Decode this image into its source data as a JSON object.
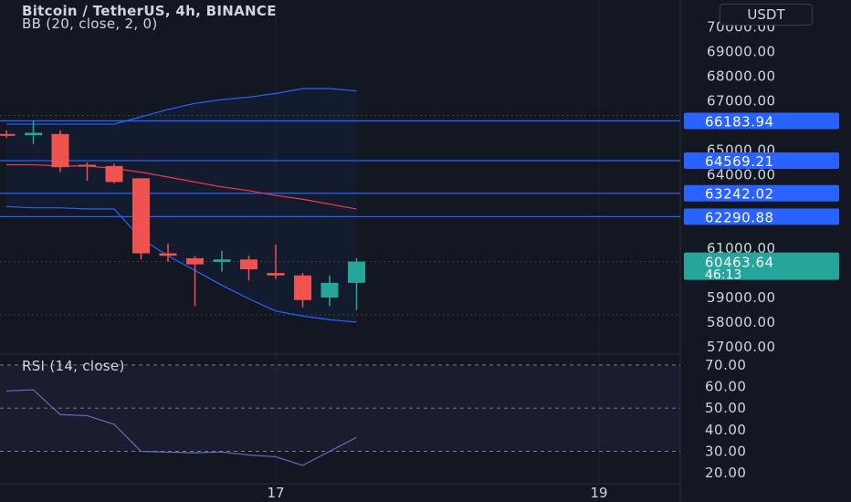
{
  "header": {
    "symbol_line": "Bitcoin / TetherUS, 4h, BINANCE",
    "indicator_line": "BB (20, close, 2, 0)",
    "currency_button": "USDT"
  },
  "colors": {
    "background": "#131722",
    "up": "#26a69a",
    "down": "#ef5350",
    "bb_band": "#2962ff",
    "bb_basis": "#f23645",
    "level_line": "#2962ff",
    "rsi_line": "#7e57c2",
    "grid": "#1e222d",
    "text": "#d1d4dc"
  },
  "chart_data": [
    {
      "type": "candlestick",
      "title": "Bitcoin / TetherUS, 4h, BINANCE",
      "ylim": [
        56700,
        71100
      ],
      "y_ticks": [
        "70000.00",
        "69000.00",
        "68000.00",
        "67000.00",
        "65000.00",
        "64000.00",
        "61000.00",
        "59000.00",
        "58000.00",
        "57000.00"
      ],
      "x_ticks": [
        {
          "label": "17",
          "index": 10
        },
        {
          "label": "19",
          "index": 22
        }
      ],
      "candles": [
        {
          "o": 65650,
          "h": 65800,
          "l": 65500,
          "c": 65600
        },
        {
          "o": 65600,
          "h": 66200,
          "l": 65250,
          "c": 65700
        },
        {
          "o": 65650,
          "h": 65800,
          "l": 64100,
          "c": 64300
        },
        {
          "o": 64400,
          "h": 64500,
          "l": 63750,
          "c": 64350
        },
        {
          "o": 64350,
          "h": 64450,
          "l": 63650,
          "c": 63700
        },
        {
          "o": 63850,
          "h": 63850,
          "l": 60550,
          "c": 60800
        },
        {
          "o": 60800,
          "h": 61200,
          "l": 60450,
          "c": 60700
        },
        {
          "o": 60600,
          "h": 60700,
          "l": 58650,
          "c": 60350
        },
        {
          "o": 60450,
          "h": 60900,
          "l": 60050,
          "c": 60550
        },
        {
          "o": 60550,
          "h": 60700,
          "l": 59700,
          "c": 60150
        },
        {
          "o": 60000,
          "h": 61150,
          "l": 59750,
          "c": 59900
        },
        {
          "o": 59900,
          "h": 60000,
          "l": 58600,
          "c": 58900
        },
        {
          "o": 59000,
          "h": 59900,
          "l": 58650,
          "c": 59600
        },
        {
          "o": 59600,
          "h": 60600,
          "l": 58500,
          "c": 60463.64
        }
      ],
      "bollinger": {
        "name": "BB (20, close, 2, 0)",
        "upper": [
          66050,
          66050,
          66050,
          66050,
          66050,
          66350,
          66650,
          66900,
          67050,
          67150,
          67300,
          67500,
          67500,
          67400
        ],
        "basis": [
          64400,
          64400,
          64350,
          64350,
          64250,
          64100,
          63900,
          63700,
          63500,
          63350,
          63150,
          63000,
          62800,
          62600
        ],
        "lower": [
          62700,
          62650,
          62650,
          62600,
          62600,
          61400,
          60700,
          60100,
          59500,
          58950,
          58450,
          58250,
          58100,
          58000
        ]
      },
      "price_lines": [
        "66183.94",
        "64569.21",
        "63242.02",
        "62290.88"
      ],
      "last_price": {
        "value": "60463.64",
        "countdown": "46:13"
      }
    },
    {
      "type": "line",
      "title": "RSI (14, close)",
      "ylim": [
        15,
        75
      ],
      "y_ticks": [
        "70.00",
        "60.00",
        "50.00",
        "40.00",
        "30.00",
        "20.00"
      ],
      "bands": [
        30,
        50,
        70
      ],
      "values": [
        58,
        58.5,
        47,
        46.5,
        42.5,
        30,
        29.6,
        29.3,
        29.7,
        28.3,
        27.5,
        23.5,
        30,
        36.5
      ]
    }
  ]
}
